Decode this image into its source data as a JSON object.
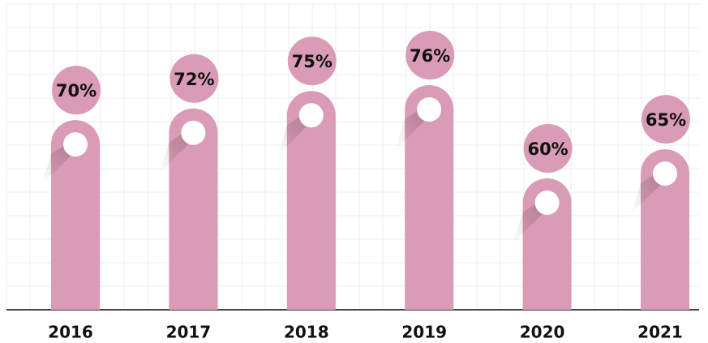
{
  "chart_data": {
    "type": "bar",
    "categories": [
      "2016",
      "2017",
      "2018",
      "2019",
      "2020",
      "2021"
    ],
    "values": [
      70,
      72,
      75,
      76,
      60,
      65
    ],
    "value_labels": [
      "70%",
      "72%",
      "75%",
      "76%",
      "60%",
      "65%"
    ],
    "color": "#d99bb5"
  }
}
